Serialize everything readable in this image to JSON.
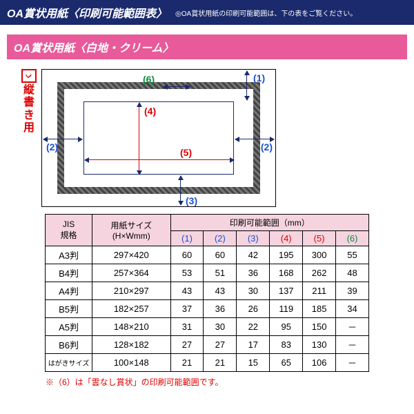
{
  "header": {
    "title": "OA賞状用紙〈印刷可能範囲表〉",
    "note": "◎OA賞状用紙の印刷可能範囲は、下の表をご覧ください。"
  },
  "sub": {
    "title": "OA賞状用紙〈白地・クリーム〉"
  },
  "vlabel": {
    "icon": "ᨆ",
    "c1": "縦",
    "c2": "書",
    "c3": "き",
    "c4": "用"
  },
  "dims": {
    "d1": "(1)",
    "d2l": "(2)",
    "d2r": "(2)",
    "d3": "(3)",
    "d4": "(4)",
    "d5": "(5)",
    "d6": "(6)"
  },
  "table": {
    "headers": {
      "jis": "JIS\n規格",
      "size": "用紙サイズ\n(H×Wmm)",
      "range": "印刷可能範囲（mm）",
      "c1": "(1)",
      "c2": "(2)",
      "c3": "(3)",
      "c4": "(4)",
      "c5": "(5)",
      "c6": "(6)"
    },
    "rows": [
      {
        "jis": "A3判",
        "size": "297×420",
        "v": [
          "60",
          "60",
          "42",
          "195",
          "300",
          "55"
        ]
      },
      {
        "jis": "B4判",
        "size": "257×364",
        "v": [
          "53",
          "51",
          "36",
          "168",
          "262",
          "48"
        ]
      },
      {
        "jis": "A4判",
        "size": "210×297",
        "v": [
          "43",
          "43",
          "30",
          "137",
          "211",
          "39"
        ]
      },
      {
        "jis": "B5判",
        "size": "182×257",
        "v": [
          "37",
          "36",
          "26",
          "119",
          "185",
          "34"
        ]
      },
      {
        "jis": "A5判",
        "size": "148×210",
        "v": [
          "31",
          "30",
          "22",
          "95",
          "150",
          "－"
        ]
      },
      {
        "jis": "B6判",
        "size": "128×182",
        "v": [
          "27",
          "27",
          "17",
          "83",
          "130",
          "－"
        ]
      },
      {
        "jis": "はがきサイズ",
        "size": "100×148",
        "v": [
          "21",
          "21",
          "15",
          "65",
          "106",
          "－"
        ]
      }
    ]
  },
  "footnote": "※（6）は「雲なし賞状」の印刷可能範囲です。",
  "colors": {
    "navy": "#1a2a6c",
    "pink": "#e85a9a",
    "blue": "#1a4fd0",
    "red": "#d00",
    "green": "#0a8a3a",
    "th_bg": "#f5d4e0"
  }
}
